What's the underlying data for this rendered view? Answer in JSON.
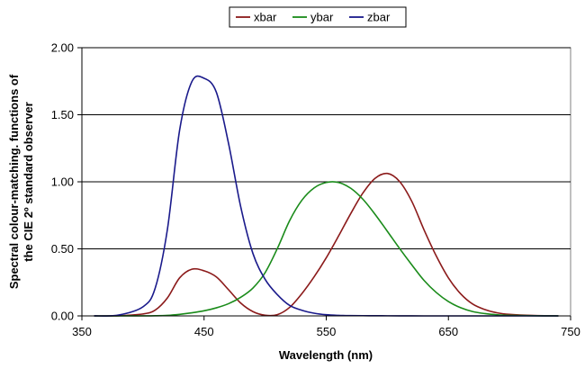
{
  "chart_data": {
    "type": "line",
    "xlabel": "Wavelength (nm)",
    "ylabel_lines": [
      "Spectral colour-matching. functions of",
      "the CIE 2º standard observer"
    ],
    "xlim": [
      350,
      750
    ],
    "ylim": [
      0,
      2
    ],
    "x_ticks": [
      350,
      450,
      550,
      650,
      750
    ],
    "y_ticks": [
      0,
      0.5,
      1.0,
      1.5,
      2.0
    ],
    "x_tick_labels": [
      "350",
      "450",
      "550",
      "650",
      "750"
    ],
    "y_tick_labels": [
      "0.00",
      "0.50",
      "1.00",
      "1.50",
      "2.00"
    ],
    "grid": "horizontal",
    "legend_position": "top-center",
    "series": [
      {
        "name": "xbar",
        "color": "#8B1A1A",
        "x": [
          360,
          380,
          400,
          410,
          420,
          430,
          440,
          450,
          460,
          470,
          480,
          490,
          500,
          510,
          520,
          530,
          540,
          550,
          560,
          570,
          580,
          590,
          600,
          610,
          620,
          630,
          640,
          650,
          660,
          670,
          680,
          690,
          700,
          720,
          740
        ],
        "y": [
          0.0001,
          0.0014,
          0.0143,
          0.0435,
          0.1344,
          0.2839,
          0.3483,
          0.3362,
          0.2908,
          0.1954,
          0.0956,
          0.032,
          0.0049,
          0.0093,
          0.0633,
          0.1655,
          0.2904,
          0.4334,
          0.5945,
          0.7621,
          0.9163,
          1.0263,
          1.0622,
          1.0026,
          0.8544,
          0.6424,
          0.4479,
          0.2835,
          0.1649,
          0.0874,
          0.0468,
          0.0227,
          0.0114,
          0.0029,
          0.0007
        ]
      },
      {
        "name": "ybar",
        "color": "#1A8B1A",
        "x": [
          360,
          380,
          400,
          410,
          420,
          430,
          440,
          450,
          460,
          470,
          480,
          490,
          500,
          510,
          520,
          530,
          540,
          550,
          560,
          570,
          580,
          590,
          600,
          610,
          620,
          630,
          640,
          650,
          660,
          670,
          680,
          690,
          700,
          720,
          740
        ],
        "y": [
          0.0,
          0.0,
          0.0004,
          0.0012,
          0.004,
          0.0116,
          0.023,
          0.038,
          0.06,
          0.091,
          0.139,
          0.208,
          0.323,
          0.503,
          0.71,
          0.862,
          0.954,
          0.995,
          0.995,
          0.952,
          0.87,
          0.757,
          0.631,
          0.503,
          0.381,
          0.265,
          0.175,
          0.107,
          0.061,
          0.032,
          0.017,
          0.0082,
          0.0041,
          0.001,
          0.0003
        ]
      },
      {
        "name": "zbar",
        "color": "#1A1A8B",
        "x": [
          360,
          380,
          400,
          410,
          420,
          430,
          440,
          450,
          460,
          470,
          480,
          490,
          500,
          510,
          520,
          530,
          540,
          550,
          560,
          570,
          580,
          590,
          600,
          610,
          620,
          630,
          640,
          650,
          660,
          670,
          680,
          690,
          700,
          720,
          740
        ],
        "y": [
          0.0003,
          0.0065,
          0.0679,
          0.2074,
          0.6456,
          1.3856,
          1.747,
          1.7721,
          1.6692,
          1.2876,
          0.813,
          0.4652,
          0.272,
          0.1582,
          0.0782,
          0.0422,
          0.0203,
          0.0087,
          0.0039,
          0.0021,
          0.0017,
          0.0011,
          0.0008,
          0.0003,
          0.0002,
          0.0,
          0.0,
          0.0,
          0.0,
          0.0,
          0.0,
          0.0,
          0.0,
          0.0,
          0.0
        ]
      }
    ]
  }
}
